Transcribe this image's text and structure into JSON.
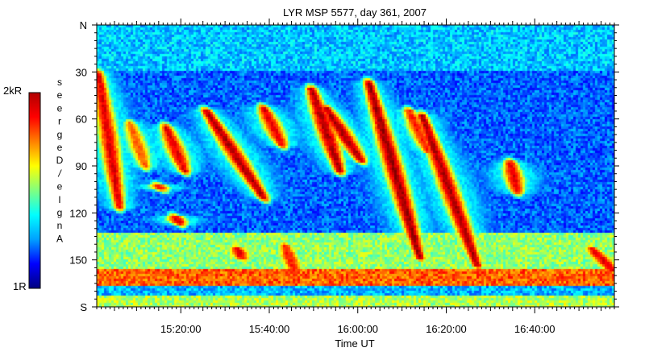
{
  "chart_data": {
    "type": "heatmap",
    "title": "LYR MSP 5577, day 361, 2007",
    "xlabel": "Time UT",
    "colorbar": {
      "label": "Angle / Degrees",
      "label_glyphs": [
        "s",
        "e",
        "e",
        "r",
        "g",
        "e",
        "D",
        "/",
        "e",
        "l",
        "g",
        "n",
        "A"
      ],
      "max_label": "2kR",
      "min_label": "1R",
      "colormap": "jet",
      "colors": [
        "#000080",
        "#0000ff",
        "#00a0ff",
        "#00ffff",
        "#80ff80",
        "#ffff00",
        "#ff8000",
        "#ff0000",
        "#b00000"
      ]
    },
    "x_range_ut": [
      "15:01:00",
      "16:58:00"
    ],
    "x_ticks": [
      "15:20:00",
      "15:40:00",
      "16:00:00",
      "16:20:00",
      "16:40:00"
    ],
    "y_range_deg": [
      0,
      180
    ],
    "y_ticks": [
      "N",
      "30",
      "60",
      "90",
      "120",
      "150",
      "S"
    ],
    "y_tick_values": [
      0,
      30,
      60,
      90,
      120,
      150,
      180
    ],
    "background": "blue quiet sky above ~130 deg, green/cyan diffuse emission below",
    "arcs": [
      {
        "start_time": "15:01:00",
        "end_time": "15:06:00",
        "start_deg": 28,
        "end_deg": 118,
        "intensity": 0.9
      },
      {
        "start_time": "15:08:00",
        "end_time": "15:12:00",
        "start_deg": 60,
        "end_deg": 92,
        "intensity": 0.78
      },
      {
        "start_time": "15:16:00",
        "end_time": "15:21:00",
        "start_deg": 62,
        "end_deg": 95,
        "intensity": 0.9
      },
      {
        "start_time": "15:14:00",
        "end_time": "15:16:00",
        "start_deg": 100,
        "end_deg": 106,
        "intensity": 0.85
      },
      {
        "start_time": "15:18:00",
        "end_time": "15:20:00",
        "start_deg": 120,
        "end_deg": 128,
        "intensity": 0.9
      },
      {
        "start_time": "15:25:00",
        "end_time": "15:39:00",
        "start_deg": 52,
        "end_deg": 112,
        "intensity": 0.95
      },
      {
        "start_time": "15:38:00",
        "end_time": "15:43:00",
        "start_deg": 50,
        "end_deg": 78,
        "intensity": 0.9
      },
      {
        "start_time": "15:49:00",
        "end_time": "15:56:00",
        "start_deg": 38,
        "end_deg": 95,
        "intensity": 0.95
      },
      {
        "start_time": "15:52:00",
        "end_time": "16:01:00",
        "start_deg": 50,
        "end_deg": 88,
        "intensity": 0.95
      },
      {
        "start_time": "16:02:00",
        "end_time": "16:14:00",
        "start_deg": 34,
        "end_deg": 150,
        "intensity": 0.97
      },
      {
        "start_time": "16:11:00",
        "end_time": "16:16:00",
        "start_deg": 52,
        "end_deg": 82,
        "intensity": 0.85
      },
      {
        "start_time": "16:14:00",
        "end_time": "16:27:00",
        "start_deg": 55,
        "end_deg": 155,
        "intensity": 0.95
      },
      {
        "start_time": "16:34:00",
        "end_time": "16:36:00",
        "start_deg": 85,
        "end_deg": 108,
        "intensity": 0.9
      },
      {
        "start_time": "16:52:00",
        "end_time": "16:58:00",
        "start_deg": 140,
        "end_deg": 158,
        "intensity": 0.9
      },
      {
        "start_time": "15:32:00",
        "end_time": "15:34:00",
        "start_deg": 140,
        "end_deg": 150,
        "intensity": 0.9
      },
      {
        "start_time": "15:43:00",
        "end_time": "15:46:00",
        "start_deg": 138,
        "end_deg": 160,
        "intensity": 0.85
      }
    ],
    "bands": [
      {
        "from_deg": 0,
        "to_deg": 28,
        "level": 0.32
      },
      {
        "from_deg": 28,
        "to_deg": 132,
        "level": 0.22
      },
      {
        "from_deg": 132,
        "to_deg": 155,
        "level": 0.52
      },
      {
        "from_deg": 155,
        "to_deg": 166,
        "level": 0.78
      },
      {
        "from_deg": 166,
        "to_deg": 172,
        "level": 0.3
      },
      {
        "from_deg": 172,
        "to_deg": 180,
        "level": 0.55
      }
    ]
  }
}
